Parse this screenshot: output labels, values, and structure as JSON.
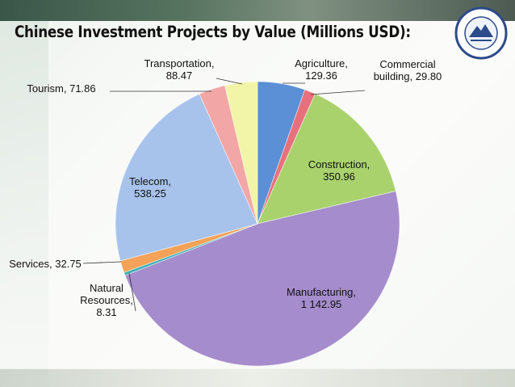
{
  "title": "Chinese Investment Projects by Value (Millions USD):",
  "colors": {
    "agriculture": "#5b8fd6",
    "commercial": "#e8707c",
    "construction": "#a9d26d",
    "manufacturing": "#a58ccc",
    "natural": "#3fb1b7",
    "services": "#f3a257",
    "telecom": "#a7c3ec",
    "tourism": "#f2a6a6",
    "transportation": "#f2f5a8"
  },
  "chart_data": {
    "type": "pie",
    "title": "Chinese Investment Projects by Value (Millions USD):",
    "slices": [
      {
        "key": "agriculture",
        "name": "Agriculture",
        "value": 129.36,
        "label_lines": [
          "Agriculture,",
          "129.36"
        ]
      },
      {
        "key": "commercial",
        "name": "Commercial building",
        "value": 29.8,
        "label_lines": [
          "Commercial",
          "building,  29.80"
        ]
      },
      {
        "key": "construction",
        "name": "Construction",
        "value": 350.96,
        "label_lines": [
          "Construction,",
          "350.96"
        ]
      },
      {
        "key": "manufacturing",
        "name": "Manufacturing",
        "value": 1142.95,
        "label_lines": [
          "Manufacturing,",
          "1 142.95"
        ]
      },
      {
        "key": "natural",
        "name": "Natural Resources",
        "value": 8.31,
        "label_lines": [
          "Natural",
          "Resources,",
          "8.31"
        ]
      },
      {
        "key": "services",
        "name": "Services",
        "value": 32.75,
        "label_lines": [
          "Services,  32.75"
        ]
      },
      {
        "key": "telecom",
        "name": "Telecom",
        "value": 538.25,
        "label_lines": [
          "Telecom,",
          "538.25"
        ]
      },
      {
        "key": "tourism",
        "name": "Tourism",
        "value": 71.86,
        "label_lines": [
          "Tourism,  71.86"
        ]
      },
      {
        "key": "transportation",
        "name": "Transportation",
        "value": 88.47,
        "label_lines": [
          "Transportation,",
          "88.47"
        ]
      }
    ]
  }
}
